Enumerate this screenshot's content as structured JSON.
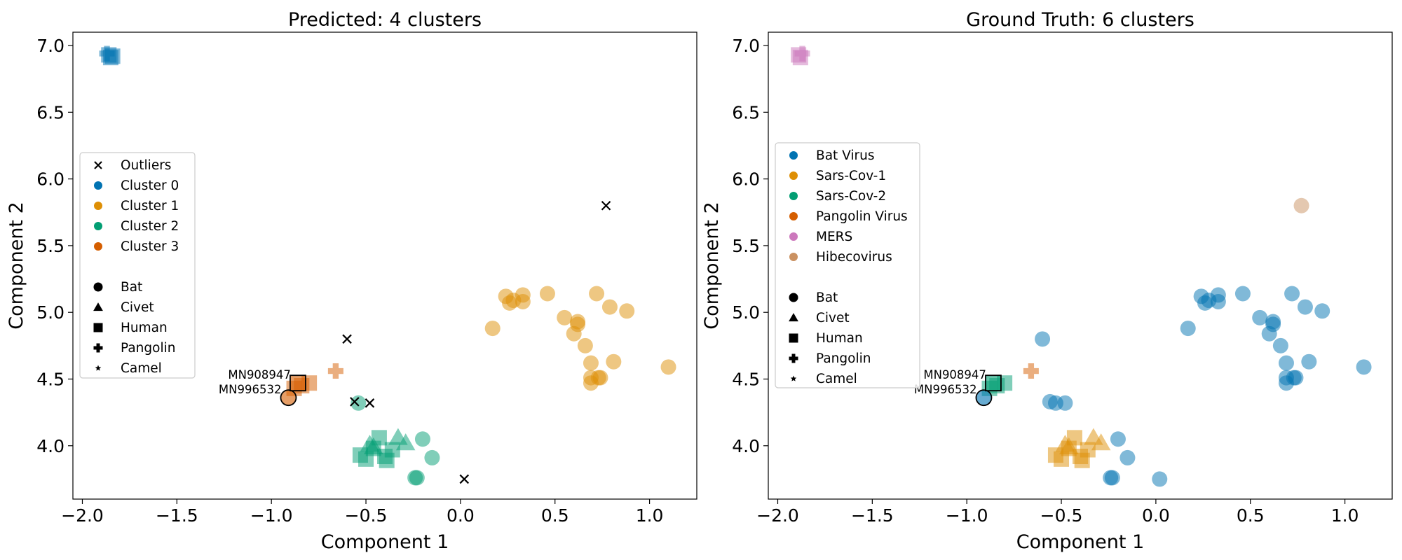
{
  "colors": {
    "Cluster 0": "#0173b2",
    "Cluster 1": "#de8f05",
    "Cluster 2": "#029e73",
    "Cluster 3": "#d55e00",
    "Bat Virus": "#0173b2",
    "Sars-Cov-1": "#de8f05",
    "Sars-Cov-2": "#029e73",
    "Pangolin Virus": "#d55e00",
    "MERS": "#cc78bc",
    "Hibecovirus": "#ca9161",
    "Outliers": "#000000"
  },
  "chart_data": [
    {
      "type": "scatter",
      "title": "Predicted: 4 clusters",
      "xlabel": "Component 1",
      "ylabel": "Component 2",
      "xlim": [
        -2.05,
        1.25
      ],
      "ylim": [
        3.6,
        7.1
      ],
      "xticks": [
        "−2.0",
        "−1.5",
        "−1.0",
        "−0.5",
        "0.0",
        "0.5",
        "1.0"
      ],
      "xtick_values": [
        -2.0,
        -1.5,
        -1.0,
        -0.5,
        0.0,
        0.5,
        1.0
      ],
      "yticks": [
        "4.0",
        "4.5",
        "5.0",
        "5.5",
        "6.0",
        "6.5",
        "7.0"
      ],
      "ytick_values": [
        4.0,
        4.5,
        5.0,
        5.5,
        6.0,
        6.5,
        7.0
      ],
      "legend_position": "center-left",
      "legend_color_entries": [
        "Outliers",
        "Cluster 0",
        "Cluster 1",
        "Cluster 2",
        "Cluster 3"
      ],
      "legend_marker_entries": [
        {
          "label": "Bat",
          "marker": "circle"
        },
        {
          "label": "Civet",
          "marker": "triangle"
        },
        {
          "label": "Human",
          "marker": "square"
        },
        {
          "label": "Pangolin",
          "marker": "plus"
        },
        {
          "label": "Camel",
          "marker": "star"
        }
      ],
      "annotations": [
        {
          "text": "MN908947",
          "x": -0.86,
          "y": 4.47
        },
        {
          "text": "MN996532",
          "x": -0.91,
          "y": 4.36
        }
      ],
      "highlighted": [
        {
          "x": -0.91,
          "y": 4.36,
          "marker": "circle",
          "group": "Cluster 3"
        },
        {
          "x": -0.86,
          "y": 4.47,
          "marker": "square",
          "group": "Cluster 3"
        }
      ],
      "points": [
        {
          "x": -1.86,
          "y": 6.93,
          "group": "Cluster 0",
          "marker": "square"
        },
        {
          "x": -1.85,
          "y": 6.91,
          "group": "Cluster 0",
          "marker": "square"
        },
        {
          "x": -1.87,
          "y": 6.94,
          "group": "Cluster 0",
          "marker": "plus"
        },
        {
          "x": -1.84,
          "y": 6.92,
          "group": "Cluster 0",
          "marker": "square"
        },
        {
          "x": 0.24,
          "y": 5.12,
          "group": "Cluster 1",
          "marker": "circle"
        },
        {
          "x": 0.26,
          "y": 5.07,
          "group": "Cluster 1",
          "marker": "circle"
        },
        {
          "x": 0.28,
          "y": 5.09,
          "group": "Cluster 1",
          "marker": "circle"
        },
        {
          "x": 0.33,
          "y": 5.13,
          "group": "Cluster 1",
          "marker": "circle"
        },
        {
          "x": 0.33,
          "y": 5.08,
          "group": "Cluster 1",
          "marker": "circle"
        },
        {
          "x": 0.46,
          "y": 5.14,
          "group": "Cluster 1",
          "marker": "circle"
        },
        {
          "x": 0.17,
          "y": 4.88,
          "group": "Cluster 1",
          "marker": "circle"
        },
        {
          "x": 0.55,
          "y": 4.96,
          "group": "Cluster 1",
          "marker": "circle"
        },
        {
          "x": 0.6,
          "y": 4.84,
          "group": "Cluster 1",
          "marker": "circle"
        },
        {
          "x": 0.62,
          "y": 4.93,
          "group": "Cluster 1",
          "marker": "circle"
        },
        {
          "x": 0.62,
          "y": 4.91,
          "group": "Cluster 1",
          "marker": "circle"
        },
        {
          "x": 0.66,
          "y": 4.75,
          "group": "Cluster 1",
          "marker": "circle"
        },
        {
          "x": 0.72,
          "y": 5.14,
          "group": "Cluster 1",
          "marker": "circle"
        },
        {
          "x": 0.79,
          "y": 5.04,
          "group": "Cluster 1",
          "marker": "circle"
        },
        {
          "x": 0.88,
          "y": 5.01,
          "group": "Cluster 1",
          "marker": "circle"
        },
        {
          "x": 0.69,
          "y": 4.62,
          "group": "Cluster 1",
          "marker": "circle"
        },
        {
          "x": 0.81,
          "y": 4.63,
          "group": "Cluster 1",
          "marker": "circle"
        },
        {
          "x": 0.69,
          "y": 4.51,
          "group": "Cluster 1",
          "marker": "circle"
        },
        {
          "x": 0.69,
          "y": 4.47,
          "group": "Cluster 1",
          "marker": "circle"
        },
        {
          "x": 0.73,
          "y": 4.51,
          "group": "Cluster 1",
          "marker": "circle"
        },
        {
          "x": 0.74,
          "y": 4.51,
          "group": "Cluster 1",
          "marker": "circle"
        },
        {
          "x": 1.1,
          "y": 4.59,
          "group": "Cluster 1",
          "marker": "circle"
        },
        {
          "x": -0.54,
          "y": 4.32,
          "group": "Cluster 2",
          "marker": "circle"
        },
        {
          "x": -0.2,
          "y": 4.05,
          "group": "Cluster 2",
          "marker": "circle"
        },
        {
          "x": -0.15,
          "y": 3.91,
          "group": "Cluster 2",
          "marker": "circle"
        },
        {
          "x": -0.23,
          "y": 3.76,
          "group": "Cluster 2",
          "marker": "circle"
        },
        {
          "x": -0.24,
          "y": 3.76,
          "group": "Cluster 2",
          "marker": "circle"
        },
        {
          "x": -0.53,
          "y": 3.93,
          "group": "Cluster 2",
          "marker": "square"
        },
        {
          "x": -0.5,
          "y": 3.9,
          "group": "Cluster 2",
          "marker": "square"
        },
        {
          "x": -0.46,
          "y": 3.98,
          "group": "Cluster 2",
          "marker": "square"
        },
        {
          "x": -0.43,
          "y": 4.06,
          "group": "Cluster 2",
          "marker": "square"
        },
        {
          "x": -0.4,
          "y": 3.92,
          "group": "Cluster 2",
          "marker": "square"
        },
        {
          "x": -0.39,
          "y": 3.89,
          "group": "Cluster 2",
          "marker": "square"
        },
        {
          "x": -0.36,
          "y": 3.97,
          "group": "Cluster 2",
          "marker": "square"
        },
        {
          "x": -0.48,
          "y": 4.01,
          "group": "Cluster 2",
          "marker": "triangle"
        },
        {
          "x": -0.46,
          "y": 3.99,
          "group": "Cluster 2",
          "marker": "triangle"
        },
        {
          "x": -0.33,
          "y": 4.06,
          "group": "Cluster 2",
          "marker": "triangle"
        },
        {
          "x": -0.29,
          "y": 4.02,
          "group": "Cluster 2",
          "marker": "triangle"
        },
        {
          "x": -0.88,
          "y": 4.43,
          "group": "Cluster 3",
          "marker": "square"
        },
        {
          "x": -0.84,
          "y": 4.45,
          "group": "Cluster 3",
          "marker": "square"
        },
        {
          "x": -0.8,
          "y": 4.47,
          "group": "Cluster 3",
          "marker": "square"
        },
        {
          "x": -0.66,
          "y": 4.56,
          "group": "Cluster 3",
          "marker": "plus"
        },
        {
          "x": 0.77,
          "y": 5.8,
          "group": "Outliers",
          "marker": "x"
        },
        {
          "x": -0.6,
          "y": 4.8,
          "group": "Outliers",
          "marker": "x"
        },
        {
          "x": -0.56,
          "y": 4.33,
          "group": "Outliers",
          "marker": "x"
        },
        {
          "x": -0.48,
          "y": 4.32,
          "group": "Outliers",
          "marker": "x"
        },
        {
          "x": 0.02,
          "y": 3.75,
          "group": "Outliers",
          "marker": "x"
        }
      ]
    },
    {
      "type": "scatter",
      "title": "Ground Truth: 6 clusters",
      "xlabel": "Component 1",
      "ylabel": "Component 2",
      "xlim": [
        -2.05,
        1.25
      ],
      "ylim": [
        3.6,
        7.1
      ],
      "xticks": [
        "−2.0",
        "−1.5",
        "−1.0",
        "−0.5",
        "0.0",
        "0.5",
        "1.0"
      ],
      "xtick_values": [
        -2.0,
        -1.5,
        -1.0,
        -0.5,
        0.0,
        0.5,
        1.0
      ],
      "yticks": [
        "4.0",
        "4.5",
        "5.0",
        "5.5",
        "6.0",
        "6.5",
        "7.0"
      ],
      "ytick_values": [
        4.0,
        4.5,
        5.0,
        5.5,
        6.0,
        6.5,
        7.0
      ],
      "legend_position": "center-left",
      "legend_color_entries": [
        "Bat Virus",
        "Sars-Cov-1",
        "Sars-Cov-2",
        "Pangolin Virus",
        "MERS",
        "Hibecovirus"
      ],
      "legend_marker_entries": [
        {
          "label": "Bat",
          "marker": "circle"
        },
        {
          "label": "Civet",
          "marker": "triangle"
        },
        {
          "label": "Human",
          "marker": "square"
        },
        {
          "label": "Pangolin",
          "marker": "plus"
        },
        {
          "label": "Camel",
          "marker": "star"
        }
      ],
      "annotations": [
        {
          "text": "MN908947",
          "x": -0.86,
          "y": 4.47
        },
        {
          "text": "MN996532",
          "x": -0.91,
          "y": 4.36
        }
      ],
      "highlighted": [
        {
          "x": -0.91,
          "y": 4.36,
          "marker": "circle",
          "group": "Bat Virus"
        },
        {
          "x": -0.86,
          "y": 4.47,
          "marker": "square",
          "group": "Sars-Cov-2"
        }
      ],
      "points": [
        {
          "x": -1.89,
          "y": 6.93,
          "group": "MERS",
          "marker": "square"
        },
        {
          "x": -1.88,
          "y": 6.91,
          "group": "MERS",
          "marker": "square"
        },
        {
          "x": -1.87,
          "y": 6.94,
          "group": "MERS",
          "marker": "plus"
        },
        {
          "x": 0.24,
          "y": 5.12,
          "group": "Bat Virus",
          "marker": "circle"
        },
        {
          "x": 0.26,
          "y": 5.07,
          "group": "Bat Virus",
          "marker": "circle"
        },
        {
          "x": 0.28,
          "y": 5.09,
          "group": "Bat Virus",
          "marker": "circle"
        },
        {
          "x": 0.33,
          "y": 5.13,
          "group": "Bat Virus",
          "marker": "circle"
        },
        {
          "x": 0.33,
          "y": 5.08,
          "group": "Bat Virus",
          "marker": "circle"
        },
        {
          "x": 0.46,
          "y": 5.14,
          "group": "Bat Virus",
          "marker": "circle"
        },
        {
          "x": 0.17,
          "y": 4.88,
          "group": "Bat Virus",
          "marker": "circle"
        },
        {
          "x": 0.55,
          "y": 4.96,
          "group": "Bat Virus",
          "marker": "circle"
        },
        {
          "x": 0.6,
          "y": 4.84,
          "group": "Bat Virus",
          "marker": "circle"
        },
        {
          "x": 0.62,
          "y": 4.93,
          "group": "Bat Virus",
          "marker": "circle"
        },
        {
          "x": 0.62,
          "y": 4.91,
          "group": "Bat Virus",
          "marker": "circle"
        },
        {
          "x": 0.66,
          "y": 4.75,
          "group": "Bat Virus",
          "marker": "circle"
        },
        {
          "x": 0.72,
          "y": 5.14,
          "group": "Bat Virus",
          "marker": "circle"
        },
        {
          "x": 0.79,
          "y": 5.04,
          "group": "Bat Virus",
          "marker": "circle"
        },
        {
          "x": 0.88,
          "y": 5.01,
          "group": "Bat Virus",
          "marker": "circle"
        },
        {
          "x": 0.69,
          "y": 4.62,
          "group": "Bat Virus",
          "marker": "circle"
        },
        {
          "x": 0.81,
          "y": 4.63,
          "group": "Bat Virus",
          "marker": "circle"
        },
        {
          "x": 0.69,
          "y": 4.51,
          "group": "Bat Virus",
          "marker": "circle"
        },
        {
          "x": 0.69,
          "y": 4.47,
          "group": "Bat Virus",
          "marker": "circle"
        },
        {
          "x": 0.73,
          "y": 4.51,
          "group": "Bat Virus",
          "marker": "circle"
        },
        {
          "x": 0.74,
          "y": 4.51,
          "group": "Bat Virus",
          "marker": "circle"
        },
        {
          "x": 1.1,
          "y": 4.59,
          "group": "Bat Virus",
          "marker": "circle"
        },
        {
          "x": -0.6,
          "y": 4.8,
          "group": "Bat Virus",
          "marker": "circle"
        },
        {
          "x": -0.56,
          "y": 4.33,
          "group": "Bat Virus",
          "marker": "circle"
        },
        {
          "x": -0.53,
          "y": 4.32,
          "group": "Bat Virus",
          "marker": "circle"
        },
        {
          "x": -0.48,
          "y": 4.32,
          "group": "Bat Virus",
          "marker": "circle"
        },
        {
          "x": -0.2,
          "y": 4.05,
          "group": "Bat Virus",
          "marker": "circle"
        },
        {
          "x": -0.15,
          "y": 3.91,
          "group": "Bat Virus",
          "marker": "circle"
        },
        {
          "x": -0.23,
          "y": 3.76,
          "group": "Bat Virus",
          "marker": "circle"
        },
        {
          "x": -0.24,
          "y": 3.76,
          "group": "Bat Virus",
          "marker": "circle"
        },
        {
          "x": 0.02,
          "y": 3.75,
          "group": "Bat Virus",
          "marker": "circle"
        },
        {
          "x": 0.77,
          "y": 5.8,
          "group": "Hibecovirus",
          "marker": "circle"
        },
        {
          "x": -0.53,
          "y": 3.93,
          "group": "Sars-Cov-1",
          "marker": "square"
        },
        {
          "x": -0.5,
          "y": 3.9,
          "group": "Sars-Cov-1",
          "marker": "square"
        },
        {
          "x": -0.46,
          "y": 3.98,
          "group": "Sars-Cov-1",
          "marker": "square"
        },
        {
          "x": -0.43,
          "y": 4.06,
          "group": "Sars-Cov-1",
          "marker": "square"
        },
        {
          "x": -0.4,
          "y": 3.92,
          "group": "Sars-Cov-1",
          "marker": "square"
        },
        {
          "x": -0.39,
          "y": 3.89,
          "group": "Sars-Cov-1",
          "marker": "square"
        },
        {
          "x": -0.36,
          "y": 3.97,
          "group": "Sars-Cov-1",
          "marker": "square"
        },
        {
          "x": -0.48,
          "y": 4.01,
          "group": "Sars-Cov-1",
          "marker": "triangle"
        },
        {
          "x": -0.46,
          "y": 3.99,
          "group": "Sars-Cov-1",
          "marker": "triangle"
        },
        {
          "x": -0.33,
          "y": 4.06,
          "group": "Sars-Cov-1",
          "marker": "triangle"
        },
        {
          "x": -0.29,
          "y": 4.02,
          "group": "Sars-Cov-1",
          "marker": "triangle"
        },
        {
          "x": -0.88,
          "y": 4.43,
          "group": "Sars-Cov-2",
          "marker": "square"
        },
        {
          "x": -0.84,
          "y": 4.45,
          "group": "Sars-Cov-2",
          "marker": "square"
        },
        {
          "x": -0.8,
          "y": 4.47,
          "group": "Sars-Cov-2",
          "marker": "square"
        },
        {
          "x": -0.66,
          "y": 4.56,
          "group": "Pangolin Virus",
          "marker": "plus"
        }
      ]
    }
  ]
}
